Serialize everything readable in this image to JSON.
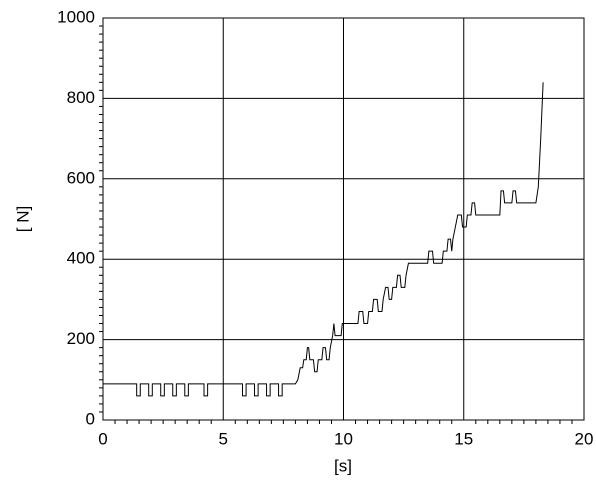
{
  "chart_data": {
    "type": "line",
    "xlabel": "[s]",
    "ylabel": "[ N]",
    "xlim": [
      0,
      20
    ],
    "xticks": [
      0,
      5,
      10,
      15,
      20
    ],
    "ylim": [
      0,
      1000
    ],
    "yticks": [
      0,
      200,
      400,
      600,
      800,
      1000
    ],
    "grid": true,
    "series": [
      {
        "color": "#000000",
        "x": [
          0,
          1.4,
          1.4,
          1.55,
          1.55,
          1.9,
          1.9,
          2.05,
          2.05,
          2.4,
          2.4,
          2.55,
          2.55,
          2.9,
          2.9,
          3.05,
          3.05,
          3.4,
          3.4,
          3.55,
          3.55,
          4.2,
          4.2,
          4.35,
          4.35,
          5.8,
          5.8,
          5.95,
          5.95,
          6.3,
          6.3,
          6.45,
          6.45,
          6.8,
          6.8,
          6.95,
          6.95,
          7.3,
          7.3,
          7.45,
          7.45,
          8.0,
          8.1,
          8.2,
          8.3,
          8.35,
          8.45,
          8.5,
          8.55,
          8.6,
          8.75,
          8.8,
          8.9,
          8.95,
          9.1,
          9.15,
          9.25,
          9.3,
          9.4,
          9.45,
          9.55,
          9.6,
          9.65,
          9.9,
          9.95,
          10.6,
          10.65,
          10.8,
          10.85,
          11.0,
          11.05,
          11.2,
          11.25,
          11.4,
          11.45,
          11.6,
          11.65,
          11.75,
          11.85,
          11.9,
          12.0,
          12.05,
          12.2,
          12.25,
          12.35,
          12.4,
          12.55,
          12.6,
          12.7,
          13.5,
          13.55,
          13.7,
          13.75,
          14.1,
          14.15,
          14.3,
          14.35,
          14.45,
          14.5,
          14.55,
          14.65,
          14.75,
          14.9,
          14.95,
          15.1,
          15.15,
          15.3,
          15.35,
          15.45,
          15.5,
          16.5,
          16.55,
          16.65,
          16.7,
          17.0,
          17.05,
          17.15,
          17.2,
          18.0,
          18.1,
          18.2,
          18.3
        ],
        "values": [
          90,
          90,
          60,
          60,
          90,
          90,
          60,
          60,
          90,
          90,
          60,
          60,
          90,
          90,
          60,
          60,
          90,
          90,
          60,
          60,
          90,
          90,
          60,
          60,
          90,
          90,
          60,
          60,
          90,
          90,
          60,
          60,
          90,
          90,
          60,
          60,
          90,
          90,
          60,
          60,
          90,
          90,
          100,
          130,
          130,
          150,
          150,
          180,
          180,
          150,
          150,
          120,
          120,
          150,
          150,
          180,
          180,
          150,
          150,
          180,
          210,
          240,
          210,
          210,
          240,
          240,
          270,
          270,
          240,
          240,
          270,
          270,
          300,
          300,
          270,
          270,
          300,
          330,
          330,
          300,
          300,
          330,
          330,
          360,
          360,
          330,
          330,
          360,
          390,
          390,
          420,
          420,
          390,
          390,
          420,
          420,
          450,
          450,
          420,
          450,
          480,
          510,
          510,
          480,
          480,
          510,
          510,
          540,
          540,
          510,
          510,
          570,
          570,
          540,
          540,
          570,
          570,
          540,
          540,
          580,
          700,
          840
        ]
      }
    ]
  }
}
